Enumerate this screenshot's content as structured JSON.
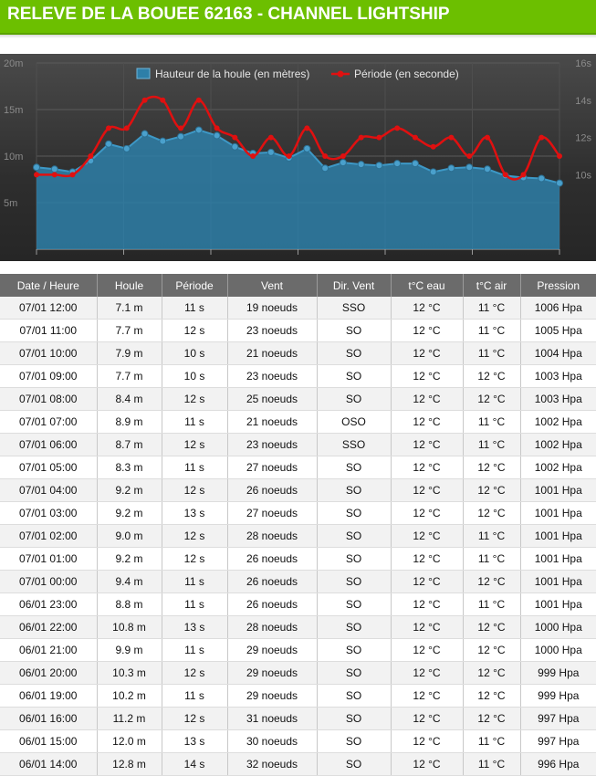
{
  "header": {
    "title": "RELEVE DE LA BOUEE 62163 - CHANNEL LIGHTSHIP"
  },
  "colors": {
    "accent": "#6cbf00",
    "area": "#2e7fa8",
    "period_line": "#e01010"
  },
  "chart_data": {
    "type": "area",
    "series": [
      {
        "name": "Hauteur de la houle (en mètres)",
        "axis": "left",
        "values": [
          8.8,
          8.6,
          8.3,
          9.5,
          11.3,
          10.8,
          12.4,
          11.6,
          12.1,
          12.8,
          12.2,
          11.0,
          10.3,
          10.4,
          9.8,
          10.8,
          8.7,
          9.3,
          9.1,
          9.0,
          9.2,
          9.2,
          8.3,
          8.7,
          8.8,
          8.6,
          7.9,
          7.7,
          7.6,
          7.1
        ]
      },
      {
        "name": "Période (en seconde)",
        "axis": "right",
        "values": [
          10.0,
          10.0,
          10.0,
          11.0,
          12.5,
          12.5,
          14.0,
          14.0,
          12.5,
          14.0,
          12.5,
          12.0,
          11.0,
          12.0,
          11.0,
          12.5,
          11.0,
          11.0,
          12.0,
          12.0,
          12.5,
          12.0,
          11.5,
          12.0,
          11.0,
          12.0,
          10.0,
          10.0,
          12.0,
          11.0
        ]
      }
    ],
    "y_left": {
      "ticks": [
        "20m",
        "15m",
        "10m",
        "5m"
      ],
      "range": [
        0,
        20
      ]
    },
    "y_right": {
      "ticks": [
        "16s",
        "14s",
        "12s",
        "10s"
      ],
      "range": [
        6,
        16
      ]
    },
    "grid": true,
    "legend_position": "top"
  },
  "table": {
    "headers": [
      "Date / Heure",
      "Houle",
      "Période",
      "Vent",
      "Dir. Vent",
      "t°C eau",
      "t°C air",
      "Pression"
    ],
    "rows": [
      [
        "07/01 12:00",
        "7.1 m",
        "11 s",
        "19 noeuds",
        "SSO",
        "12 °C",
        "11 °C",
        "1006 Hpa"
      ],
      [
        "07/01 11:00",
        "7.7 m",
        "12 s",
        "23 noeuds",
        "SO",
        "12 °C",
        "11 °C",
        "1005 Hpa"
      ],
      [
        "07/01 10:00",
        "7.9 m",
        "10 s",
        "21 noeuds",
        "SO",
        "12 °C",
        "11 °C",
        "1004 Hpa"
      ],
      [
        "07/01 09:00",
        "7.7 m",
        "10 s",
        "23 noeuds",
        "SO",
        "12 °C",
        "12 °C",
        "1003 Hpa"
      ],
      [
        "07/01 08:00",
        "8.4 m",
        "12 s",
        "25 noeuds",
        "SO",
        "12 °C",
        "12 °C",
        "1003 Hpa"
      ],
      [
        "07/01 07:00",
        "8.9 m",
        "11 s",
        "21 noeuds",
        "OSO",
        "12 °C",
        "11 °C",
        "1002 Hpa"
      ],
      [
        "07/01 06:00",
        "8.7 m",
        "12 s",
        "23 noeuds",
        "SSO",
        "12 °C",
        "11 °C",
        "1002 Hpa"
      ],
      [
        "07/01 05:00",
        "8.3 m",
        "11 s",
        "27 noeuds",
        "SO",
        "12 °C",
        "12 °C",
        "1002 Hpa"
      ],
      [
        "07/01 04:00",
        "9.2 m",
        "12 s",
        "26 noeuds",
        "SO",
        "12 °C",
        "12 °C",
        "1001 Hpa"
      ],
      [
        "07/01 03:00",
        "9.2 m",
        "13 s",
        "27 noeuds",
        "SO",
        "12 °C",
        "12 °C",
        "1001 Hpa"
      ],
      [
        "07/01 02:00",
        "9.0 m",
        "12 s",
        "28 noeuds",
        "SO",
        "12 °C",
        "11 °C",
        "1001 Hpa"
      ],
      [
        "07/01 01:00",
        "9.2 m",
        "12 s",
        "26 noeuds",
        "SO",
        "12 °C",
        "11 °C",
        "1001 Hpa"
      ],
      [
        "07/01 00:00",
        "9.4 m",
        "11 s",
        "26 noeuds",
        "SO",
        "12 °C",
        "12 °C",
        "1001 Hpa"
      ],
      [
        "06/01 23:00",
        "8.8 m",
        "11 s",
        "26 noeuds",
        "SO",
        "12 °C",
        "11 °C",
        "1001 Hpa"
      ],
      [
        "06/01 22:00",
        "10.8 m",
        "13 s",
        "28 noeuds",
        "SO",
        "12 °C",
        "12 °C",
        "1000 Hpa"
      ],
      [
        "06/01 21:00",
        "9.9 m",
        "11 s",
        "29 noeuds",
        "SO",
        "12 °C",
        "12 °C",
        "1000 Hpa"
      ],
      [
        "06/01 20:00",
        "10.3 m",
        "12 s",
        "29 noeuds",
        "SO",
        "12 °C",
        "12 °C",
        "999 Hpa"
      ],
      [
        "06/01 19:00",
        "10.2 m",
        "11 s",
        "29 noeuds",
        "SO",
        "12 °C",
        "12 °C",
        "999 Hpa"
      ],
      [
        "06/01 16:00",
        "11.2 m",
        "12 s",
        "31 noeuds",
        "SO",
        "12 °C",
        "12 °C",
        "997 Hpa"
      ],
      [
        "06/01 15:00",
        "12.0 m",
        "13 s",
        "30 noeuds",
        "SO",
        "12 °C",
        "11 °C",
        "997 Hpa"
      ],
      [
        "06/01 14:00",
        "12.8 m",
        "14 s",
        "32 noeuds",
        "SO",
        "12 °C",
        "11 °C",
        "996 Hpa"
      ]
    ]
  }
}
